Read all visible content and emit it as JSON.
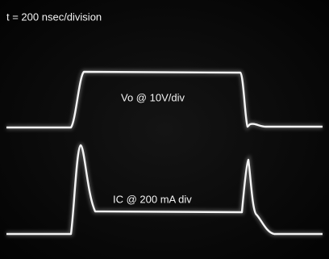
{
  "annotations": {
    "timebase": "t = 200 nsec/division",
    "trace1": "Vo @ 10V/div",
    "trace2": "IC @ 200 mA div"
  }
}
